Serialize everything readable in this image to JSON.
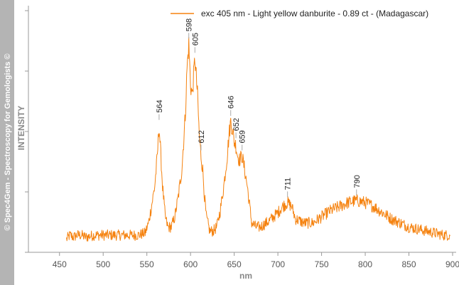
{
  "sidebar": {
    "watermark": "© Spec4Gem - Spectroscopy for Gemologists ©",
    "background": "#b4b4b4"
  },
  "colors": {
    "series": "#f5820f",
    "axis": "#999999",
    "text": "#222222"
  },
  "chart_data": {
    "type": "line",
    "title": "",
    "xlabel": "nm",
    "ylabel": "INTENSITY",
    "xlim": [
      425,
      900
    ],
    "ylim": [
      0,
      1
    ],
    "x_ticks": [
      450,
      500,
      550,
      600,
      650,
      700,
      750,
      800,
      850,
      900
    ],
    "y_ticks_labeled": false,
    "grid": false,
    "legend_position": "top-right",
    "series": [
      {
        "name": "exc 405 nm - Light yellow danburite - 0.89 ct - (Madagascar)",
        "color": "#f5820f",
        "x": [
          458,
          462,
          466,
          470,
          475,
          480,
          490,
          500,
          510,
          520,
          530,
          540,
          548,
          552,
          556,
          559,
          562,
          564,
          566,
          568,
          571,
          574,
          578,
          582,
          586,
          590,
          594,
          596,
          598,
          600,
          602,
          605,
          608,
          610,
          612,
          614,
          616,
          618,
          622,
          626,
          630,
          634,
          638,
          642,
          644,
          646,
          648,
          650,
          652,
          654,
          656,
          659,
          662,
          665,
          670,
          675,
          680,
          690,
          700,
          705,
          711,
          716,
          720,
          730,
          740,
          750,
          760,
          770,
          780,
          790,
          800,
          810,
          820,
          830,
          840,
          850,
          860,
          870,
          880,
          890,
          897
        ],
        "y": [
          0.04,
          0.06,
          0.05,
          0.06,
          0.06,
          0.05,
          0.06,
          0.06,
          0.06,
          0.06,
          0.06,
          0.06,
          0.07,
          0.12,
          0.22,
          0.3,
          0.45,
          0.6,
          0.45,
          0.3,
          0.15,
          0.1,
          0.1,
          0.15,
          0.25,
          0.38,
          0.65,
          0.88,
          1.0,
          0.8,
          0.75,
          0.93,
          0.75,
          0.55,
          0.45,
          0.38,
          0.25,
          0.15,
          0.08,
          0.08,
          0.1,
          0.18,
          0.3,
          0.45,
          0.55,
          0.62,
          0.58,
          0.52,
          0.5,
          0.45,
          0.43,
          0.45,
          0.38,
          0.3,
          0.12,
          0.1,
          0.1,
          0.13,
          0.17,
          0.2,
          0.22,
          0.2,
          0.14,
          0.12,
          0.12,
          0.15,
          0.18,
          0.2,
          0.22,
          0.23,
          0.22,
          0.2,
          0.17,
          0.14,
          0.12,
          0.1,
          0.09,
          0.08,
          0.07,
          0.06,
          0.06
        ]
      }
    ],
    "annotations": [
      {
        "label": "564",
        "x": 564,
        "y": 0.62
      },
      {
        "label": "598",
        "x": 598,
        "y": 1.02
      },
      {
        "label": "605",
        "x": 605,
        "y": 0.95
      },
      {
        "label": "612",
        "x": 612,
        "y": 0.47
      },
      {
        "label": "646",
        "x": 646,
        "y": 0.64
      },
      {
        "label": "652",
        "x": 652,
        "y": 0.53
      },
      {
        "label": "659",
        "x": 659,
        "y": 0.47
      },
      {
        "label": "711",
        "x": 711,
        "y": 0.24
      },
      {
        "label": "790",
        "x": 790,
        "y": 0.25
      }
    ]
  }
}
